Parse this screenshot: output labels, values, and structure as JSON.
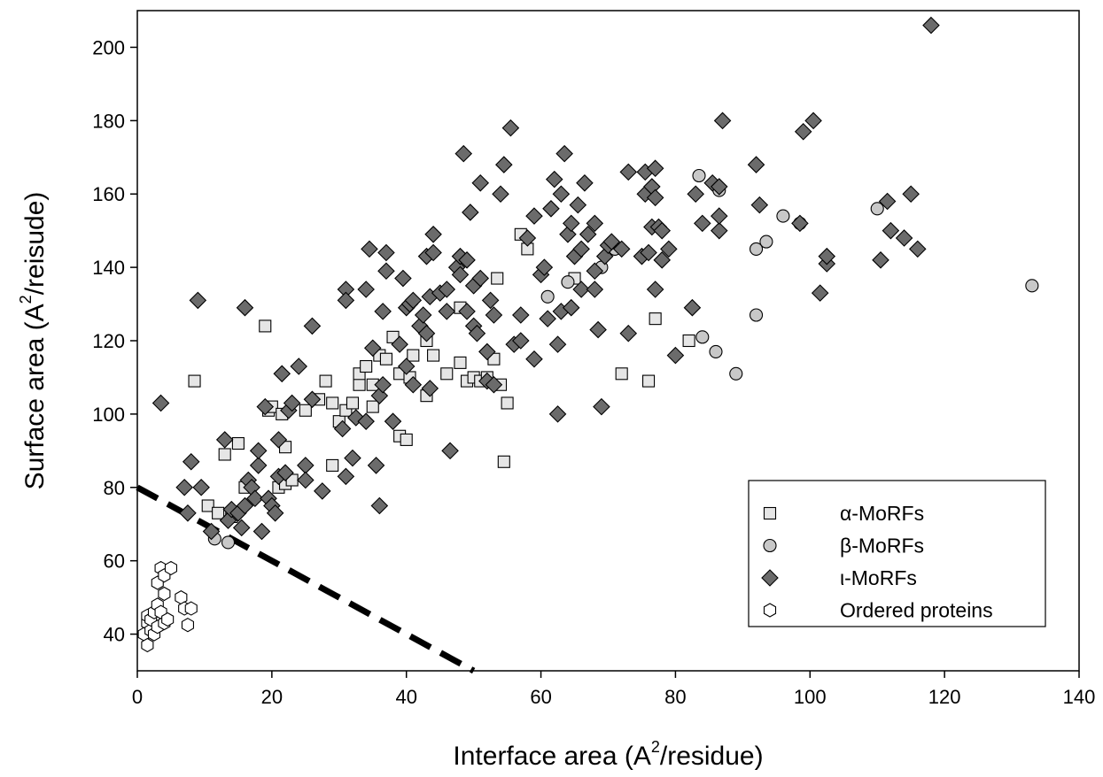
{
  "chart_data": {
    "type": "scatter",
    "xlabel_parts": [
      "Interface area (A",
      "2",
      "/residue)"
    ],
    "ylabel_parts": [
      "Surface area (A",
      "2",
      "/reisude)"
    ],
    "xlim": [
      0,
      140
    ],
    "ylim": [
      30,
      210
    ],
    "xticks": [
      0,
      20,
      40,
      60,
      80,
      100,
      120,
      140
    ],
    "yticks": [
      40,
      60,
      80,
      100,
      120,
      140,
      160,
      180,
      200
    ],
    "grid": false,
    "legend_position": "bottom-right",
    "reference_line": {
      "style": "dashed",
      "color": "#000000",
      "x": [
        0,
        50
      ],
      "y": [
        80,
        30
      ]
    },
    "series": [
      {
        "name": "α-MoRFs",
        "marker": "square",
        "fill": "#e6e6e6",
        "points": [
          [
            8.5,
            109
          ],
          [
            10.5,
            75
          ],
          [
            12,
            73
          ],
          [
            13,
            89
          ],
          [
            14,
            72
          ],
          [
            15,
            92
          ],
          [
            16,
            80
          ],
          [
            19,
            124
          ],
          [
            19.5,
            101
          ],
          [
            20,
            102
          ],
          [
            21,
            80
          ],
          [
            22,
            81
          ],
          [
            21.5,
            100
          ],
          [
            22,
            91
          ],
          [
            23,
            82
          ],
          [
            25,
            101
          ],
          [
            27,
            104
          ],
          [
            28,
            109
          ],
          [
            29,
            86
          ],
          [
            29,
            103
          ],
          [
            30,
            98
          ],
          [
            31,
            101
          ],
          [
            32,
            103
          ],
          [
            33,
            108
          ],
          [
            33,
            111
          ],
          [
            34,
            113
          ],
          [
            35,
            108
          ],
          [
            35,
            102
          ],
          [
            36,
            116
          ],
          [
            37,
            115
          ],
          [
            38,
            121
          ],
          [
            39,
            111
          ],
          [
            39,
            94
          ],
          [
            40,
            93
          ],
          [
            40.5,
            110
          ],
          [
            41,
            116
          ],
          [
            43,
            105
          ],
          [
            43,
            120
          ],
          [
            44,
            116
          ],
          [
            46,
            111
          ],
          [
            48,
            114
          ],
          [
            48,
            129
          ],
          [
            49,
            109
          ],
          [
            50,
            110
          ],
          [
            51,
            109
          ],
          [
            52,
            110
          ],
          [
            53,
            115
          ],
          [
            53.5,
            137
          ],
          [
            54,
            108
          ],
          [
            54.5,
            87
          ],
          [
            55,
            103
          ],
          [
            57,
            149
          ],
          [
            58,
            145
          ],
          [
            65,
            137
          ],
          [
            72,
            111
          ],
          [
            76,
            109
          ],
          [
            77,
            126
          ],
          [
            82,
            120
          ]
        ]
      },
      {
        "name": "β-MoRFs",
        "marker": "circle",
        "fill": "#c8c8c8",
        "points": [
          [
            11.5,
            66
          ],
          [
            13.5,
            65
          ],
          [
            61,
            132
          ],
          [
            64,
            136
          ],
          [
            69,
            140
          ],
          [
            71,
            145
          ],
          [
            83.5,
            165
          ],
          [
            84,
            121
          ],
          [
            86,
            117
          ],
          [
            86.5,
            161
          ],
          [
            89,
            111
          ],
          [
            92,
            145
          ],
          [
            92,
            127
          ],
          [
            96,
            154
          ],
          [
            93.5,
            147
          ],
          [
            98.5,
            152
          ],
          [
            110,
            156
          ],
          [
            133,
            135
          ]
        ]
      },
      {
        "name": "ι-MoRFs",
        "marker": "diamond",
        "fill": "#6b6b6b",
        "points": [
          [
            3.5,
            103
          ],
          [
            7,
            80
          ],
          [
            7.5,
            73
          ],
          [
            8,
            87
          ],
          [
            9,
            131
          ],
          [
            9.5,
            80
          ],
          [
            11,
            68
          ],
          [
            13,
            93
          ],
          [
            13.5,
            71
          ],
          [
            14,
            74
          ],
          [
            15,
            73
          ],
          [
            15.5,
            69
          ],
          [
            16,
            129
          ],
          [
            16,
            75
          ],
          [
            16.5,
            82
          ],
          [
            17,
            80
          ],
          [
            17.5,
            77
          ],
          [
            18,
            86
          ],
          [
            18,
            90
          ],
          [
            18.5,
            68
          ],
          [
            19,
            102
          ],
          [
            19.5,
            77
          ],
          [
            20,
            75
          ],
          [
            20.5,
            73
          ],
          [
            21,
            93
          ],
          [
            21,
            83
          ],
          [
            21.5,
            111
          ],
          [
            22,
            84
          ],
          [
            22.5,
            101
          ],
          [
            23,
            103
          ],
          [
            24,
            113
          ],
          [
            25,
            86
          ],
          [
            25,
            82
          ],
          [
            26,
            104
          ],
          [
            26,
            124
          ],
          [
            27.5,
            79
          ],
          [
            30.5,
            96
          ],
          [
            31,
            134
          ],
          [
            31,
            131
          ],
          [
            31,
            83
          ],
          [
            32,
            88
          ],
          [
            32.5,
            99
          ],
          [
            34,
            98
          ],
          [
            34,
            134
          ],
          [
            34.5,
            145
          ],
          [
            35,
            118
          ],
          [
            35.5,
            86
          ],
          [
            36,
            75
          ],
          [
            36,
            105
          ],
          [
            36.5,
            108
          ],
          [
            36.5,
            128
          ],
          [
            37,
            139
          ],
          [
            37,
            144
          ],
          [
            38,
            98
          ],
          [
            39,
            119
          ],
          [
            39.5,
            137
          ],
          [
            40,
            113
          ],
          [
            40,
            129
          ],
          [
            40.5,
            130
          ],
          [
            41,
            108
          ],
          [
            41,
            131
          ],
          [
            42,
            124
          ],
          [
            42.5,
            127
          ],
          [
            43,
            143
          ],
          [
            43,
            122
          ],
          [
            43.5,
            132
          ],
          [
            43.5,
            107
          ],
          [
            44,
            149
          ],
          [
            44,
            144
          ],
          [
            45,
            133
          ],
          [
            46,
            134
          ],
          [
            46,
            128
          ],
          [
            46.5,
            90
          ],
          [
            47.5,
            140
          ],
          [
            48,
            143
          ],
          [
            48,
            138
          ],
          [
            48.5,
            171
          ],
          [
            49,
            142
          ],
          [
            49,
            128
          ],
          [
            49.5,
            155
          ],
          [
            50,
            124
          ],
          [
            50,
            135
          ],
          [
            50.5,
            122
          ],
          [
            51,
            137
          ],
          [
            51,
            163
          ],
          [
            52,
            109
          ],
          [
            52,
            117
          ],
          [
            52.5,
            131
          ],
          [
            53,
            108
          ],
          [
            53,
            127
          ],
          [
            54,
            160
          ],
          [
            54.5,
            168
          ],
          [
            55.5,
            178
          ],
          [
            56,
            119
          ],
          [
            57,
            120
          ],
          [
            57,
            127
          ],
          [
            58,
            148
          ],
          [
            59,
            115
          ],
          [
            59,
            154
          ],
          [
            60,
            138
          ],
          [
            60.5,
            140
          ],
          [
            61,
            126
          ],
          [
            61.5,
            156
          ],
          [
            62,
            164
          ],
          [
            62.5,
            119
          ],
          [
            62.5,
            100
          ],
          [
            63,
            128
          ],
          [
            63,
            160
          ],
          [
            63.5,
            171
          ],
          [
            64,
            149
          ],
          [
            64.5,
            129
          ],
          [
            64.5,
            152
          ],
          [
            65,
            143
          ],
          [
            65.5,
            157
          ],
          [
            66,
            145
          ],
          [
            66,
            134
          ],
          [
            66.5,
            163
          ],
          [
            67,
            149
          ],
          [
            68,
            139
          ],
          [
            68,
            134
          ],
          [
            68,
            152
          ],
          [
            68.5,
            123
          ],
          [
            69,
            102
          ],
          [
            69.5,
            143
          ],
          [
            70,
            146
          ],
          [
            70.5,
            147
          ],
          [
            72,
            145
          ],
          [
            73,
            122
          ],
          [
            73,
            166
          ],
          [
            75,
            143
          ],
          [
            75.5,
            160
          ],
          [
            75.5,
            166
          ],
          [
            76,
            144
          ],
          [
            76.5,
            151
          ],
          [
            76.5,
            162
          ],
          [
            77,
            134
          ],
          [
            77,
            167
          ],
          [
            77,
            159
          ],
          [
            77.5,
            151
          ],
          [
            78,
            142
          ],
          [
            78,
            150
          ],
          [
            79,
            145
          ],
          [
            80,
            116
          ],
          [
            82.5,
            129
          ],
          [
            83,
            160
          ],
          [
            84,
            152
          ],
          [
            85.5,
            163
          ],
          [
            86.5,
            150
          ],
          [
            86.5,
            154
          ],
          [
            86.5,
            162
          ],
          [
            87,
            180
          ],
          [
            92,
            168
          ],
          [
            92.5,
            157
          ],
          [
            98.5,
            152
          ],
          [
            99,
            177
          ],
          [
            100.5,
            180
          ],
          [
            101.5,
            133
          ],
          [
            102.5,
            141
          ],
          [
            102.5,
            143
          ],
          [
            110.5,
            142
          ],
          [
            111.5,
            158
          ],
          [
            112,
            150
          ],
          [
            114,
            148
          ],
          [
            115,
            160
          ],
          [
            116,
            145
          ],
          [
            118,
            206
          ]
        ]
      },
      {
        "name": "Ordered proteins",
        "marker": "hexagon",
        "fill": "#ffffff",
        "points": [
          [
            1,
            40
          ],
          [
            1.5,
            37
          ],
          [
            1.5,
            43
          ],
          [
            1.5,
            45
          ],
          [
            2,
            41
          ],
          [
            2,
            44
          ],
          [
            2.5,
            46
          ],
          [
            2.5,
            40
          ],
          [
            3,
            48
          ],
          [
            3,
            54
          ],
          [
            3,
            42
          ],
          [
            3.5,
            46
          ],
          [
            3.5,
            58
          ],
          [
            4,
            56
          ],
          [
            4,
            51
          ],
          [
            4,
            43
          ],
          [
            4.5,
            44
          ],
          [
            5,
            58
          ],
          [
            6.5,
            50
          ],
          [
            7,
            47
          ],
          [
            7.5,
            42.5
          ],
          [
            8,
            47
          ]
        ]
      }
    ]
  }
}
